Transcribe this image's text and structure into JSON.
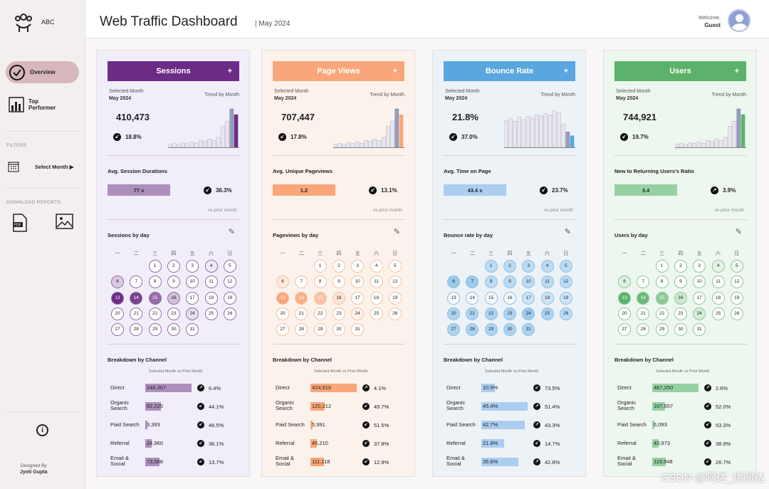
{
  "sidebar": {
    "brand": "ABC",
    "nav": [
      {
        "label": "Overview",
        "icon": "check-circle-icon"
      },
      {
        "label": "Top Performer",
        "icon": "bar-chart-icon"
      }
    ],
    "filters_label": "FILTERS",
    "select_month": "Select Month ▶",
    "download_label": "DOWNLOAD REPORTS",
    "designed_by": "Designed By",
    "designer": "Jyoti Gupta",
    "info_icon": "i"
  },
  "header": {
    "title": "Web Traffic Dashboard",
    "subtitle": "| May 2024",
    "welcome": "Welcome,",
    "user": "Guest"
  },
  "labels": {
    "selected_month": "Selected Month",
    "trend_by_month": "Trend by Month",
    "vs_prior_month": "vs prior month",
    "breakdown": "Breakdown by Channel",
    "col_selected": "Selected Month",
    "col_prior": "vs Prior Month",
    "plus": "+",
    "weekdays": [
      "一",
      "二",
      "三",
      "四",
      "五",
      "六",
      "日"
    ]
  },
  "panels": [
    {
      "title": "Sessions",
      "color": "#6c2c86",
      "bg": "#f1eef9",
      "bar": "#ad8fbe",
      "month": "May 2024",
      "value": "410,473",
      "change": "18.8%",
      "dir": "down",
      "kpi_label": "Avg. Session Durations",
      "kpi_value": "77 s",
      "kpi_change": "36.3%",
      "kpi_dir": "down",
      "day_label": "Sessions by day",
      "trend": [
        8,
        10,
        8,
        12,
        10,
        14,
        11,
        18,
        16,
        22,
        18,
        26,
        55,
        68,
        100,
        85
      ],
      "heat": {
        "6": 0.25,
        "13": 1,
        "14": 0.9,
        "15": 0.7,
        "16": 0.3,
        "24": 0.15,
        "4": 0.1
      },
      "channels": [
        {
          "name": "Direct",
          "value": "246,307",
          "w": 0.95,
          "pct": "6.4%",
          "dir": "up"
        },
        {
          "name": "Organic Search",
          "value": "82,225",
          "w": 0.3,
          "pct": "44.1%",
          "dir": "down"
        },
        {
          "name": "Paid Search",
          "value": "3,393",
          "w": 0.02,
          "pct": "46.5%",
          "dir": "down"
        },
        {
          "name": "Referral",
          "value": "24,960",
          "w": 0.1,
          "pct": "36.1%",
          "dir": "down"
        },
        {
          "name": "Email & Social",
          "value": "73,588",
          "w": 0.28,
          "pct": "13.7%",
          "dir": "down"
        }
      ]
    },
    {
      "title": "Page Views",
      "color": "#f9a77a",
      "bg": "#fbf2ec",
      "bar": "#f9a77a",
      "month": "May 2024",
      "value": "707,447",
      "change": "17.8%",
      "dir": "down",
      "kpi_label": "Avg. Unique Pageviews",
      "kpi_value": "1.2",
      "kpi_change": "13.1%",
      "kpi_dir": "down",
      "day_label": "Pageviews by day",
      "trend": [
        8,
        10,
        8,
        12,
        10,
        14,
        11,
        18,
        16,
        22,
        18,
        26,
        55,
        68,
        100,
        85
      ],
      "heat": {
        "6": 0.25,
        "13": 1,
        "14": 0.9,
        "15": 0.7,
        "16": 0.3,
        "24": 0.15
      },
      "channels": [
        {
          "name": "Direct",
          "value": "424,916",
          "w": 0.95,
          "pct": "4.1%",
          "dir": "up"
        },
        {
          "name": "Organic Search",
          "value": "120,212",
          "w": 0.28,
          "pct": "49.7%",
          "dir": "down"
        },
        {
          "name": "Paid Search",
          "value": "5,991",
          "w": 0.02,
          "pct": "51.5%",
          "dir": "down"
        },
        {
          "name": "Referral",
          "value": "45,210",
          "w": 0.1,
          "pct": "37.8%",
          "dir": "down"
        },
        {
          "name": "Email & Social",
          "value": "111,118",
          "w": 0.26,
          "pct": "12.9%",
          "dir": "down"
        }
      ]
    },
    {
      "title": "Bounce Rate",
      "color": "#5aa6de",
      "bg": "#edf2f6",
      "bar": "#aacdf0",
      "month": "May 2024",
      "value": "21.8%",
      "change": "37.0%",
      "dir": "down",
      "kpi_label": "Avg. Time on Page",
      "kpi_value": "43.4 s",
      "kpi_change": "23.7%",
      "kpi_dir": "down",
      "day_label": "Bounce rate by day",
      "trend": [
        70,
        75,
        68,
        78,
        72,
        80,
        76,
        85,
        82,
        88,
        84,
        95,
        90,
        60,
        40,
        30
      ],
      "heat": {
        "1": 0.4,
        "2": 0.4,
        "3": 0.4,
        "4": 0.4,
        "5": 0.4,
        "6": 0.6,
        "7": 0.6,
        "8": 0.4,
        "9": 0.4,
        "10": 0.4,
        "11": 0.4,
        "12": 0.4,
        "13": 0.05,
        "14": 0.05,
        "15": 0.05,
        "16": 0.05,
        "17": 0.3,
        "18": 0.3,
        "19": 0.3,
        "20": 0.5,
        "21": 0.5,
        "22": 0.5,
        "23": 0.5,
        "24": 0.6,
        "25": 0.5,
        "26": 0.4,
        "27": 0.5,
        "28": 0.5,
        "29": 0.5,
        "30": 0.5,
        "31": 0.5
      },
      "channels": [
        {
          "name": "Direct",
          "value": "10.9%",
          "w": 0.25,
          "pct": "73.5%",
          "dir": "down"
        },
        {
          "name": "Organic Search",
          "value": "45.4%",
          "w": 0.95,
          "pct": "51.4%",
          "dir": "up"
        },
        {
          "name": "Paid Search",
          "value": "42.7%",
          "w": 0.9,
          "pct": "43.3%",
          "dir": "up"
        },
        {
          "name": "Referral",
          "value": "21.8%",
          "w": 0.46,
          "pct": "14.7%",
          "dir": "down"
        },
        {
          "name": "Email & Social",
          "value": "35.6%",
          "w": 0.75,
          "pct": "42.8%",
          "dir": "up"
        }
      ]
    },
    {
      "title": "Users",
      "color": "#5cb26b",
      "bg": "#eef6f0",
      "bar": "#96d1a3",
      "month": "May 2024",
      "value": "744,921",
      "change": "19.7%",
      "dir": "down",
      "kpi_label": "New to Returning Users's Ratio",
      "kpi_value": "3.4",
      "kpi_change": "3.9%",
      "kpi_dir": "up",
      "day_label": "Users by day",
      "trend": [
        8,
        10,
        8,
        12,
        10,
        14,
        11,
        18,
        16,
        22,
        18,
        26,
        55,
        68,
        100,
        85
      ],
      "heat": {
        "4": 0.15,
        "5": 0.1,
        "6": 0.2,
        "13": 1,
        "14": 0.9,
        "15": 0.7,
        "16": 0.3,
        "24": 0.25
      },
      "channels": [
        {
          "name": "Direct",
          "value": "467,250",
          "w": 0.95,
          "pct": "2.6%",
          "dir": "up"
        },
        {
          "name": "Organic Search",
          "value": "107,657",
          "w": 0.24,
          "pct": "52.0%",
          "dir": "down"
        },
        {
          "name": "Paid Search",
          "value": "6,093",
          "w": 0.02,
          "pct": "53.3%",
          "dir": "down"
        },
        {
          "name": "Referral",
          "value": "43,973",
          "w": 0.1,
          "pct": "38.9%",
          "dir": "down"
        },
        {
          "name": "Email & Social",
          "value": "119,948",
          "w": 0.26,
          "pct": "26.7%",
          "dir": "down"
        }
      ]
    }
  ],
  "watermark": "CSDN @阿达_优阅达"
}
